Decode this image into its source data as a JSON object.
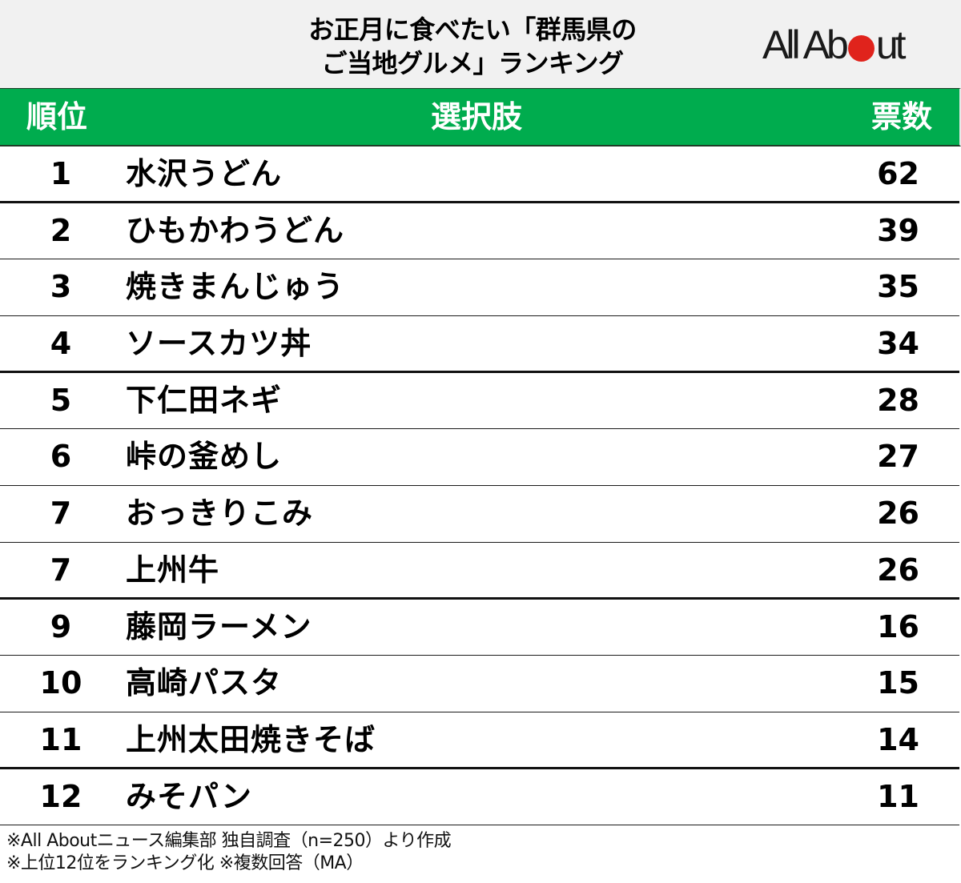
{
  "title": {
    "line1": "お正月に食べたい「群馬県の",
    "line2": "ご当地グルメ」ランキング"
  },
  "logo": {
    "text_before": "All Ab",
    "text_after": "ut",
    "dot_color": "#e0231c"
  },
  "colors": {
    "header_green": "#00ac4e",
    "title_band": "#f1f1f1"
  },
  "table": {
    "columns": [
      "順位",
      "選択肢",
      "票数"
    ],
    "rows": [
      {
        "rank": "1",
        "name": "水沢うどん",
        "votes": "62"
      },
      {
        "rank": "2",
        "name": "ひもかわうどん",
        "votes": "39"
      },
      {
        "rank": "3",
        "name": "焼きまんじゅう",
        "votes": "35"
      },
      {
        "rank": "4",
        "name": "ソースカツ丼",
        "votes": "34"
      },
      {
        "rank": "5",
        "name": "下仁田ネギ",
        "votes": "28"
      },
      {
        "rank": "6",
        "name": "峠の釜めし",
        "votes": "27"
      },
      {
        "rank": "7",
        "name": "おっきりこみ",
        "votes": "26"
      },
      {
        "rank": "7",
        "name": "上州牛",
        "votes": "26"
      },
      {
        "rank": "9",
        "name": "藤岡ラーメン",
        "votes": "16"
      },
      {
        "rank": "10",
        "name": "高崎パスタ",
        "votes": "15"
      },
      {
        "rank": "11",
        "name": "上州太田焼きそば",
        "votes": "14"
      },
      {
        "rank": "12",
        "name": "みそパン",
        "votes": "11"
      }
    ]
  },
  "footer": {
    "line1": "※All Aboutニュース編集部 独自調査（n=250）より作成",
    "line2": "※上位12位をランキング化 ※複数回答（MA）"
  }
}
